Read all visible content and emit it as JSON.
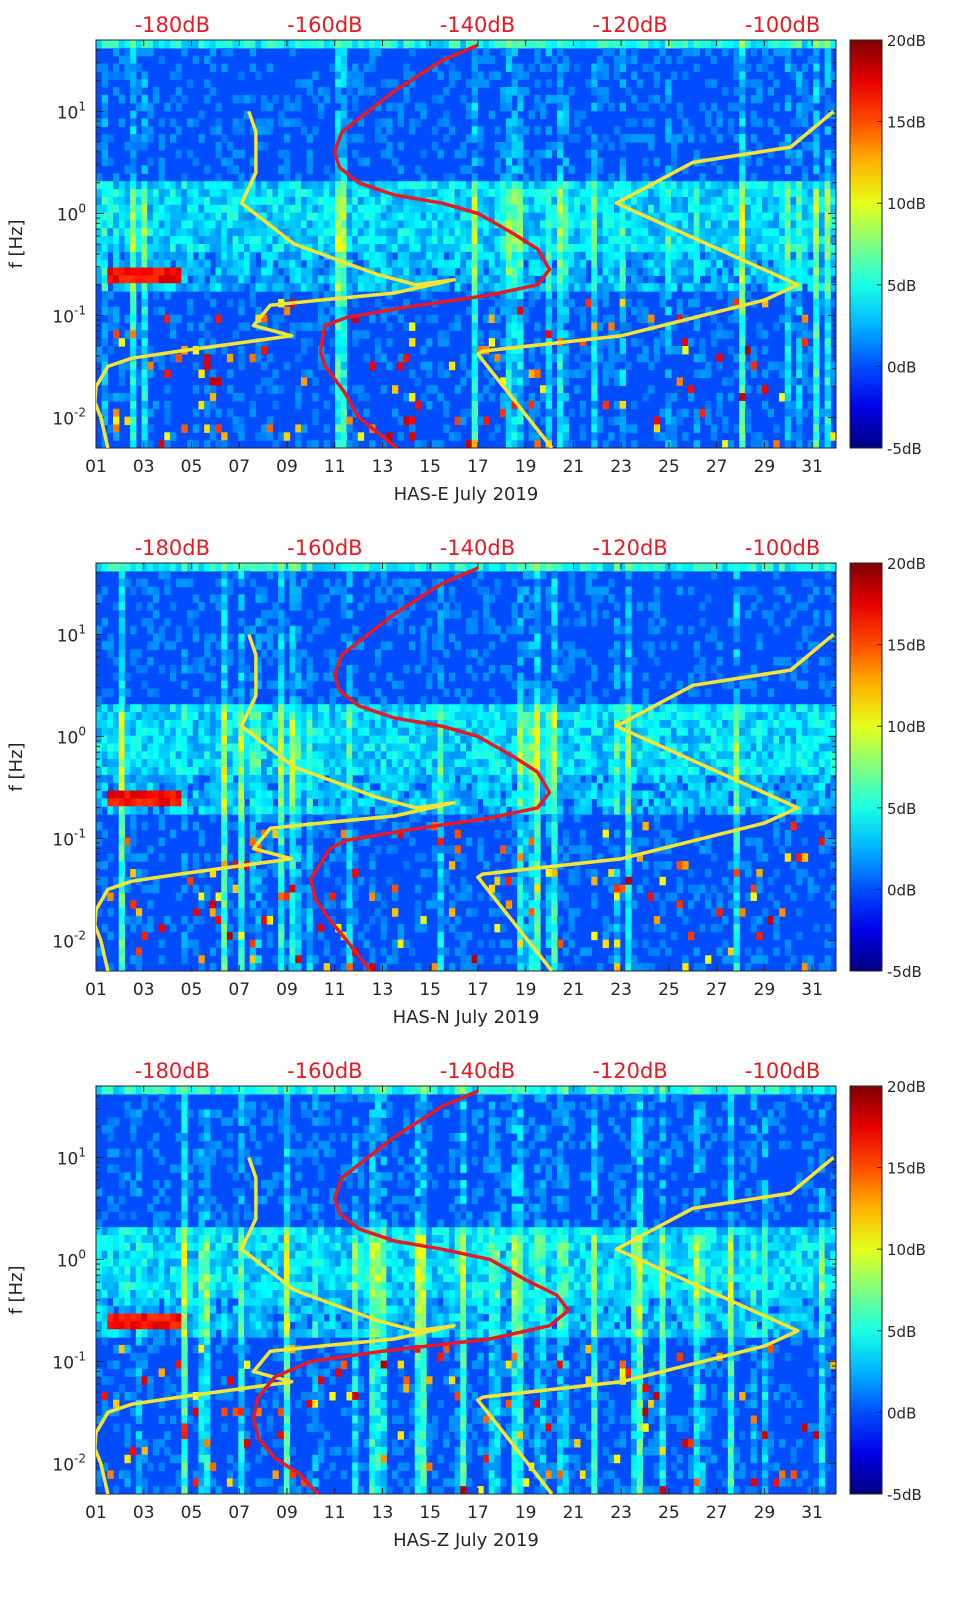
{
  "chart_data": [
    {
      "type": "heatmap",
      "panel": "E",
      "xlabel": "HAS-E July 2019",
      "ylabel": "f [Hz]",
      "x_ticks": [
        "01",
        "03",
        "05",
        "07",
        "09",
        "11",
        "13",
        "15",
        "17",
        "19",
        "21",
        "23",
        "25",
        "27",
        "29",
        "31"
      ],
      "y_ticks": [
        "10^-2",
        "10^-1",
        "10^0",
        "10^1"
      ],
      "top_ticks": [
        "-180dB",
        "-160dB",
        "-140dB",
        "-120dB",
        "-100dB"
      ],
      "colorbar_ticks": [
        "20dB",
        "15dB",
        "10dB",
        "5dB",
        "0dB",
        "-5dB"
      ],
      "xlim": [
        1,
        32
      ],
      "ylim_log10": [
        -2.3,
        1.7
      ],
      "colorbar_range_db": [
        -5,
        20
      ],
      "top_axis_range_db": [
        -190,
        -93
      ],
      "series": [
        {
          "name": "noise-model-low",
          "color": "#f5e431",
          "x": [
            7.4,
            7.7,
            7.7,
            7.1,
            9.3,
            12.8,
            14.4,
            16.0,
            13.5,
            10.4,
            8.3,
            7.6,
            9.2,
            4.5,
            2.5,
            1.5,
            1.0,
            0.95,
            1.2,
            1.5
          ],
          "log10f": [
            1.0,
            0.8,
            0.4,
            0.1,
            -0.3,
            -0.6,
            -0.7,
            -0.65,
            -0.78,
            -0.85,
            -0.9,
            -1.1,
            -1.2,
            -1.35,
            -1.42,
            -1.5,
            -1.7,
            -1.85,
            -2.0,
            -2.3
          ]
        },
        {
          "name": "noise-model-high",
          "color": "#f5e431",
          "x": [
            31.9,
            30.1,
            26.0,
            22.8,
            30.4,
            29.0,
            23.0,
            17.2,
            17.0,
            20.1
          ],
          "log10f": [
            1.0,
            0.65,
            0.5,
            0.1,
            -0.7,
            -0.85,
            -1.2,
            -1.35,
            -1.38,
            -2.3
          ],
          "note": "values in top-axis dB mapped onto the day axis"
        },
        {
          "name": "median-psd",
          "color": "#e51a24",
          "x": [
            17.0,
            15.5,
            13.5,
            11.3,
            11.0,
            11.2,
            12.0,
            13.5,
            15.5,
            17.0,
            18.5,
            19.5,
            20.0,
            19.5,
            17.5,
            14.0,
            11.5,
            10.6,
            10.5,
            10.4,
            10.6,
            11.4,
            12.0,
            13.6
          ],
          "log10f": [
            1.65,
            1.5,
            1.2,
            0.8,
            0.6,
            0.45,
            0.3,
            0.18,
            0.1,
            0.0,
            -0.2,
            -0.35,
            -0.55,
            -0.7,
            -0.8,
            -0.92,
            -1.02,
            -1.1,
            -1.2,
            -1.35,
            -1.5,
            -1.75,
            -2.0,
            -2.3
          ]
        }
      ]
    },
    {
      "type": "heatmap",
      "panel": "N",
      "xlabel": "HAS-N July 2019",
      "ylabel": "f [Hz]",
      "x_ticks": [
        "01",
        "03",
        "05",
        "07",
        "09",
        "11",
        "13",
        "15",
        "17",
        "19",
        "21",
        "23",
        "25",
        "27",
        "29",
        "31"
      ],
      "y_ticks": [
        "10^-2",
        "10^-1",
        "10^0",
        "10^1"
      ],
      "top_ticks": [
        "-180dB",
        "-160dB",
        "-140dB",
        "-120dB",
        "-100dB"
      ],
      "colorbar_ticks": [
        "20dB",
        "15dB",
        "10dB",
        "5dB",
        "0dB",
        "-5dB"
      ],
      "xlim": [
        1,
        32
      ],
      "ylim_log10": [
        -2.3,
        1.7
      ],
      "colorbar_range_db": [
        -5,
        20
      ],
      "top_axis_range_db": [
        -190,
        -93
      ],
      "series": [
        {
          "name": "noise-model-low",
          "color": "#f5e431",
          "x": [
            7.4,
            7.7,
            7.7,
            7.1,
            9.3,
            12.8,
            14.4,
            16.0,
            13.5,
            10.4,
            8.3,
            7.6,
            9.2,
            4.5,
            2.5,
            1.5,
            1.0,
            0.95,
            1.2,
            1.5
          ],
          "log10f": [
            1.0,
            0.8,
            0.4,
            0.1,
            -0.3,
            -0.6,
            -0.7,
            -0.65,
            -0.78,
            -0.85,
            -0.9,
            -1.1,
            -1.2,
            -1.35,
            -1.42,
            -1.5,
            -1.7,
            -1.85,
            -2.0,
            -2.3
          ]
        },
        {
          "name": "noise-model-high",
          "color": "#f5e431",
          "x": [
            31.9,
            30.1,
            26.0,
            22.8,
            30.4,
            29.0,
            23.0,
            17.2,
            17.0,
            20.1
          ],
          "log10f": [
            1.0,
            0.65,
            0.5,
            0.1,
            -0.7,
            -0.85,
            -1.2,
            -1.35,
            -1.38,
            -2.3
          ]
        },
        {
          "name": "median-psd",
          "color": "#e51a24",
          "x": [
            17.0,
            15.5,
            13.5,
            11.3,
            11.0,
            11.2,
            12.0,
            13.5,
            15.5,
            17.0,
            18.5,
            19.5,
            20.0,
            19.5,
            17.5,
            14.0,
            11.5,
            10.8,
            10.4,
            10.0,
            10.2,
            10.8,
            11.5,
            12.5
          ],
          "log10f": [
            1.65,
            1.5,
            1.2,
            0.8,
            0.6,
            0.45,
            0.3,
            0.18,
            0.1,
            0.0,
            -0.2,
            -0.35,
            -0.55,
            -0.7,
            -0.8,
            -0.92,
            -1.02,
            -1.1,
            -1.25,
            -1.4,
            -1.6,
            -1.8,
            -2.0,
            -2.3
          ]
        }
      ]
    },
    {
      "type": "heatmap",
      "panel": "Z",
      "xlabel": "HAS-Z July 2019",
      "ylabel": "f [Hz]",
      "x_ticks": [
        "01",
        "03",
        "05",
        "07",
        "09",
        "11",
        "13",
        "15",
        "17",
        "19",
        "21",
        "23",
        "25",
        "27",
        "29",
        "31"
      ],
      "y_ticks": [
        "10^-2",
        "10^-1",
        "10^0",
        "10^1"
      ],
      "top_ticks": [
        "-180dB",
        "-160dB",
        "-140dB",
        "-120dB",
        "-100dB"
      ],
      "colorbar_ticks": [
        "20dB",
        "15dB",
        "10dB",
        "5dB",
        "0dB",
        "-5dB"
      ],
      "xlim": [
        1,
        32
      ],
      "ylim_log10": [
        -2.3,
        1.7
      ],
      "colorbar_range_db": [
        -5,
        20
      ],
      "top_axis_range_db": [
        -190,
        -93
      ],
      "series": [
        {
          "name": "noise-model-low",
          "color": "#f5e431",
          "x": [
            7.4,
            7.7,
            7.7,
            7.1,
            9.3,
            12.8,
            14.4,
            16.0,
            13.5,
            10.4,
            8.3,
            7.6,
            9.2,
            4.5,
            2.5,
            1.5,
            1.0,
            0.95,
            1.2,
            1.5
          ],
          "log10f": [
            1.0,
            0.8,
            0.4,
            0.1,
            -0.3,
            -0.6,
            -0.7,
            -0.65,
            -0.78,
            -0.85,
            -0.9,
            -1.1,
            -1.2,
            -1.35,
            -1.42,
            -1.5,
            -1.7,
            -1.85,
            -2.0,
            -2.3
          ]
        },
        {
          "name": "noise-model-high",
          "color": "#f5e431",
          "x": [
            31.9,
            30.1,
            26.0,
            22.8,
            30.4,
            29.0,
            23.0,
            17.2,
            17.0,
            20.1
          ],
          "log10f": [
            1.0,
            0.65,
            0.5,
            0.1,
            -0.7,
            -0.85,
            -1.2,
            -1.35,
            -1.38,
            -2.3
          ]
        },
        {
          "name": "median-psd",
          "color": "#e51a24",
          "x": [
            17.0,
            15.5,
            13.5,
            11.3,
            11.0,
            11.2,
            12.0,
            13.5,
            15.5,
            17.5,
            19.0,
            20.3,
            20.8,
            20.0,
            17.5,
            13.0,
            10.0,
            8.5,
            7.8,
            7.6,
            7.8,
            8.5,
            9.5,
            10.3
          ],
          "log10f": [
            1.65,
            1.5,
            1.2,
            0.8,
            0.6,
            0.45,
            0.3,
            0.18,
            0.1,
            0.0,
            -0.2,
            -0.35,
            -0.5,
            -0.65,
            -0.78,
            -0.9,
            -1.0,
            -1.15,
            -1.35,
            -1.55,
            -1.75,
            -1.95,
            -2.1,
            -2.3
          ]
        }
      ]
    }
  ]
}
